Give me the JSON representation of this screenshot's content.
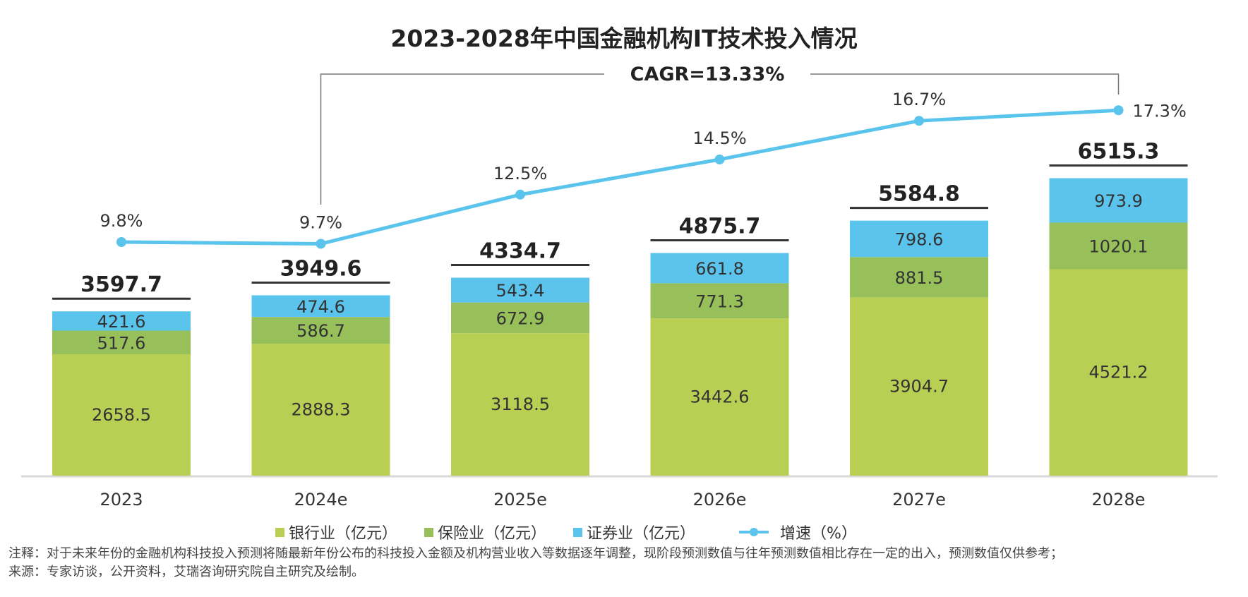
{
  "chart_data": {
    "type": "bar",
    "stacked": true,
    "title": "2023-2028年中国金融机构IT技术投入情况",
    "categories": [
      "2023",
      "2024e",
      "2025e",
      "2026e",
      "2027e",
      "2028e"
    ],
    "series": [
      {
        "name": "银行业（亿元）",
        "color": "#b9cf54",
        "values": [
          2658.5,
          2888.3,
          3118.5,
          3442.6,
          3904.7,
          4521.2
        ]
      },
      {
        "name": "保险业（亿元）",
        "color": "#97c05a",
        "values": [
          517.6,
          586.7,
          672.9,
          771.3,
          881.5,
          1020.1
        ]
      },
      {
        "name": "证券业（亿元）",
        "color": "#5bc4ec",
        "values": [
          421.6,
          474.6,
          543.4,
          661.8,
          798.6,
          973.9
        ]
      }
    ],
    "totals": [
      "3597.7",
      "3949.6",
      "4334.7",
      "4875.7",
      "5584.8",
      "6515.3"
    ],
    "line": {
      "name": "增速（%）",
      "color": "#5bc4ec",
      "values": [
        9.8,
        9.7,
        12.5,
        14.5,
        16.7,
        17.3
      ],
      "labels": [
        "9.8%",
        "9.7%",
        "12.5%",
        "14.5%",
        "16.7%",
        "17.3%"
      ]
    },
    "annotation": "CAGR=13.33%",
    "legend_position": "bottom",
    "grid": false
  },
  "notes": {
    "note": "注释：对于未来年份的金融机构科技投入预测将随最新年份公布的科技投入金额及机构营业收入等数据逐年调整，现阶段预测数值与往年预测数值相比存在一定的出入，预测数值仅供参考；",
    "source": "来源：专家访谈，公开资料，艾瑞咨询研究院自主研究及绘制。"
  }
}
